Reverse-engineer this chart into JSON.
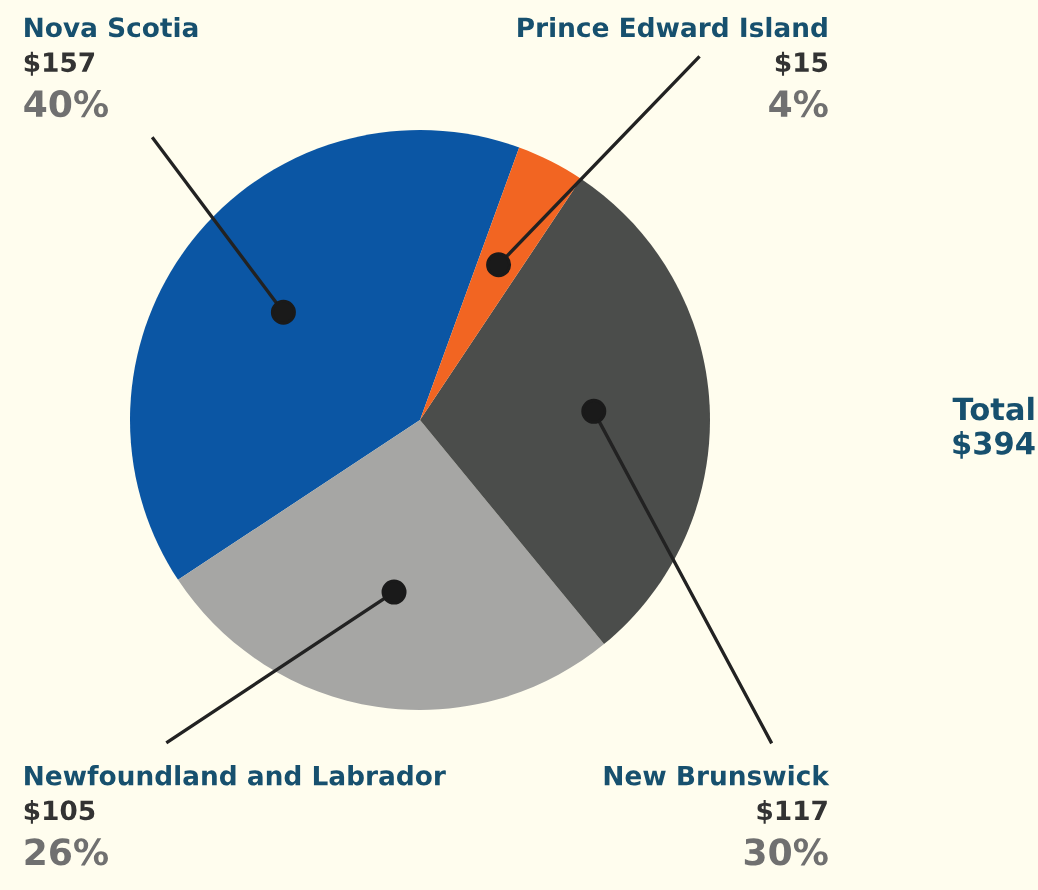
{
  "chart_data": {
    "type": "pie",
    "categories": [
      "Nova Scotia",
      "Newfoundland and Labrador",
      "New Brunswick",
      "Prince Edward Island"
    ],
    "values": [
      157,
      105,
      117,
      15
    ],
    "colors": [
      "#0b56a4",
      "#a6a6a4",
      "#4b4d4b",
      "#f26522"
    ],
    "value_labels": [
      "$157\n40%",
      "$105\n26%",
      "$117\n30%",
      "$15\n4%"
    ],
    "annotations": [
      "Total\n$394"
    ]
  }
}
